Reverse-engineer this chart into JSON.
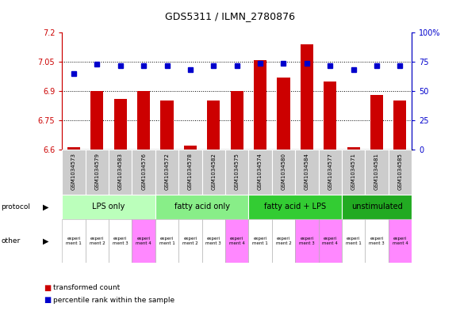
{
  "title": "GDS5311 / ILMN_2780876",
  "samples": [
    "GSM1034573",
    "GSM1034579",
    "GSM1034583",
    "GSM1034576",
    "GSM1034572",
    "GSM1034578",
    "GSM1034582",
    "GSM1034575",
    "GSM1034574",
    "GSM1034580",
    "GSM1034584",
    "GSM1034577",
    "GSM1034571",
    "GSM1034581",
    "GSM1034585"
  ],
  "red_values": [
    6.61,
    6.9,
    6.86,
    6.9,
    6.85,
    6.62,
    6.85,
    6.9,
    7.06,
    6.97,
    7.14,
    6.95,
    6.61,
    6.88,
    6.85
  ],
  "blue_values": [
    65,
    73,
    72,
    72,
    72,
    68,
    72,
    72,
    74,
    74,
    74,
    72,
    68,
    72,
    72
  ],
  "ylim_left": [
    6.6,
    7.2
  ],
  "ylim_right": [
    0,
    100
  ],
  "yticks_left": [
    6.6,
    6.75,
    6.9,
    7.05,
    7.2
  ],
  "yticks_right": [
    0,
    25,
    50,
    75,
    100
  ],
  "ytick_labels_left": [
    "6.6",
    "6.75",
    "6.9",
    "7.05",
    "7.2"
  ],
  "ytick_labels_right": [
    "0",
    "25",
    "50",
    "75",
    "100%"
  ],
  "hlines": [
    7.05,
    6.9,
    6.75
  ],
  "groups": [
    {
      "label": "LPS only",
      "start": 0,
      "end": 4,
      "color": "#bbffbb"
    },
    {
      "label": "fatty acid only",
      "start": 4,
      "end": 8,
      "color": "#88ee88"
    },
    {
      "label": "fatty acid + LPS",
      "start": 8,
      "end": 12,
      "color": "#33cc33"
    },
    {
      "label": "unstimulated",
      "start": 12,
      "end": 15,
      "color": "#22aa22"
    }
  ],
  "other_labels": [
    "experi\nment 1",
    "experi\nment 2",
    "experi\nment 3",
    "experi\nment 4",
    "experi\nment 1",
    "experi\nment 2",
    "experi\nment 3",
    "experi\nment 4",
    "experi\nment 1",
    "experi\nment 2",
    "experi\nment 3",
    "experi\nment 4",
    "experi\nment 1",
    "experi\nment 3",
    "experi\nment 4"
  ],
  "other_colors": [
    "#ffffff",
    "#ffffff",
    "#ffffff",
    "#ff88ff",
    "#ffffff",
    "#ffffff",
    "#ffffff",
    "#ff88ff",
    "#ffffff",
    "#ffffff",
    "#ff88ff",
    "#ff88ff",
    "#ffffff",
    "#ffffff",
    "#ff88ff"
  ],
  "bar_color": "#cc0000",
  "dot_color": "#0000cc",
  "left_axis_color": "#cc0000",
  "right_axis_color": "#0000cc",
  "row_header_bg": "#cccccc"
}
